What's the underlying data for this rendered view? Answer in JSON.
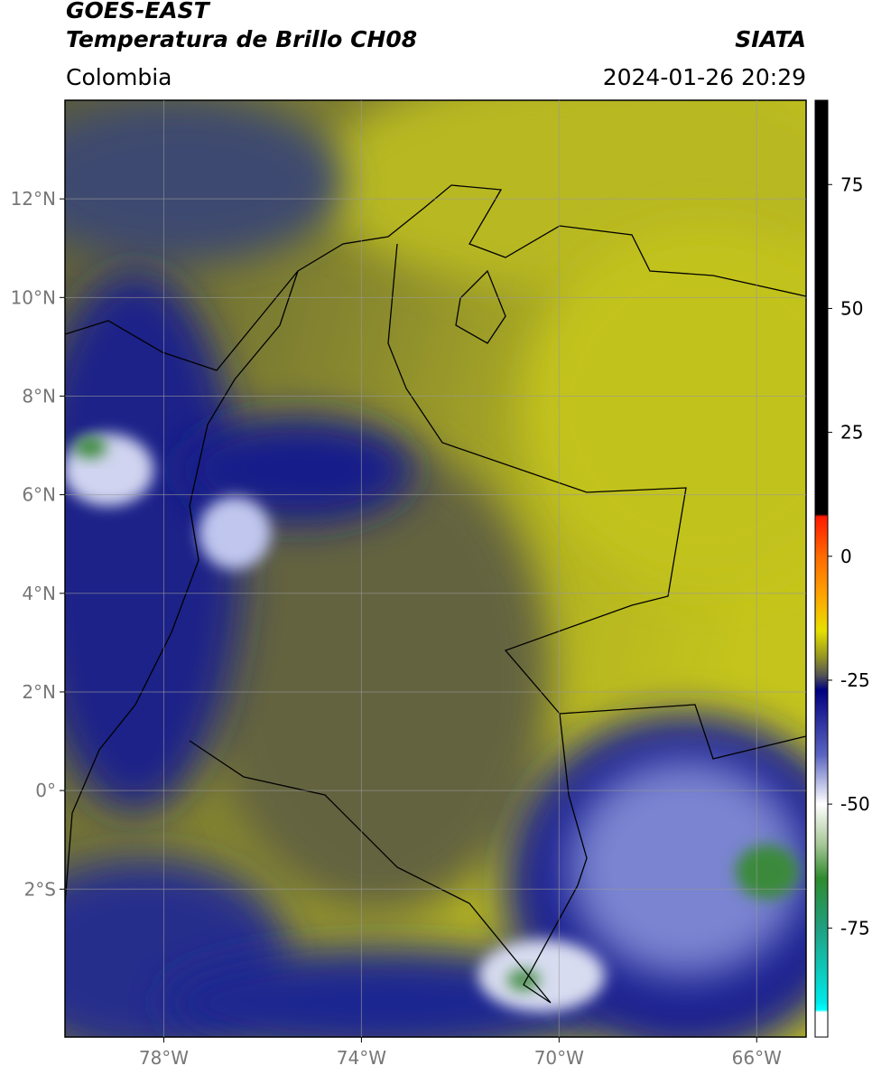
{
  "header": {
    "title_line1": "GOES-EAST",
    "title_line2": "Temperatura de Brillo CH08",
    "region": "Colombia",
    "source": "SIATA",
    "datetime": "2024-01-26 20:29"
  },
  "map": {
    "lon_range": [
      -80,
      -65
    ],
    "lat_range": [
      -5,
      14
    ],
    "lon_ticks": [
      {
        "value": -78,
        "label": "78°W"
      },
      {
        "value": -74,
        "label": "74°W"
      },
      {
        "value": -70,
        "label": "70°W"
      },
      {
        "value": -66,
        "label": "66°W"
      }
    ],
    "lat_ticks": [
      {
        "value": 12,
        "label": "12°N"
      },
      {
        "value": 10,
        "label": "10°N"
      },
      {
        "value": 8,
        "label": "8°N"
      },
      {
        "value": 6,
        "label": "6°N"
      },
      {
        "value": 4,
        "label": "4°N"
      },
      {
        "value": 2,
        "label": "2°N"
      },
      {
        "value": 0,
        "label": "0°"
      },
      {
        "value": -2,
        "label": "2°S"
      }
    ],
    "grid": true
  },
  "colorbar": {
    "range": [
      -97,
      92
    ],
    "ticks": [
      75,
      50,
      25,
      0,
      -25,
      -50,
      -75
    ],
    "stops": [
      {
        "value": 92,
        "color": "#000000"
      },
      {
        "value": 8.5,
        "color": "#000000"
      },
      {
        "value": 8,
        "color": "#ff1a00"
      },
      {
        "value": 0,
        "color": "#ff6a00"
      },
      {
        "value": -8,
        "color": "#ffa500"
      },
      {
        "value": -15,
        "color": "#e6e000"
      },
      {
        "value": -20,
        "color": "#9a9a20"
      },
      {
        "value": -24,
        "color": "#555555"
      },
      {
        "value": -27,
        "color": "#000080"
      },
      {
        "value": -40,
        "color": "#5a64c0"
      },
      {
        "value": -50,
        "color": "#ffffff"
      },
      {
        "value": -58,
        "color": "#a8c898"
      },
      {
        "value": -65,
        "color": "#2e8b2e"
      },
      {
        "value": -75,
        "color": "#20a080"
      },
      {
        "value": -90,
        "color": "#00e8e8"
      },
      {
        "value": -91.5,
        "color": "#00ffff"
      },
      {
        "value": -92,
        "color": "#ffffff"
      },
      {
        "value": -97,
        "color": "#ffffff"
      }
    ]
  }
}
